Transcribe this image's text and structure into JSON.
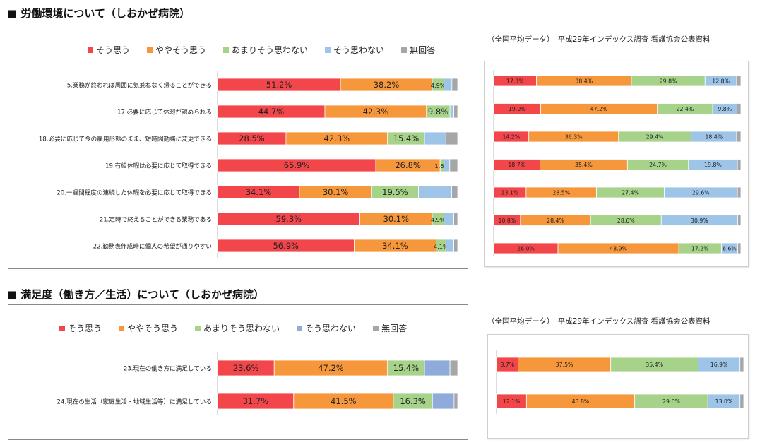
{
  "sections": [
    {
      "title": "■ 労働環境について（しおかぜ病院）"
    },
    {
      "title": "■ 満足度（働き方／生活）について（しおかぜ病院）"
    }
  ],
  "notes": [
    "（全国平均データ）　平成29年インデックス調査  看護協会公表資料",
    "（全国平均データ）　平成29年インデックス調査  看護協会公表資料"
  ],
  "colors": [
    "#f2464b",
    "#f7973c",
    "#a6d28a",
    "#9ec5e8",
    "#a6a6a6"
  ],
  "chart_data": [
    {
      "type": "bar",
      "orientation": "horizontal-stacked-100",
      "legend": [
        "そう思う",
        "ややそう思う",
        "あまりそう思わない",
        "そう思わない",
        "無回答"
      ],
      "categories": [
        "5.業務が終われば周囲に気兼ねなく帰ることができる",
        "17.必要に応じて休暇が認められる",
        "18.必要に応じて今の雇用形態のまま、短時間勤務に変更できる",
        "19.有給休暇は必要に応じて取得できる",
        "20.一週間程度の連続した休暇を必要に応じて取得できる",
        "21.定時で終えることができる業務である",
        "22.勤務表作成時に個人の希望が通りやすい"
      ],
      "values": [
        [
          51.2,
          38.2,
          4.9,
          3.3,
          2.4
        ],
        [
          44.7,
          42.3,
          9.8,
          1.6,
          1.6
        ],
        [
          28.5,
          42.3,
          15.4,
          8.9,
          4.9
        ],
        [
          65.9,
          26.8,
          1.6,
          2.4,
          3.3
        ],
        [
          34.1,
          30.1,
          19.5,
          13.8,
          2.5
        ],
        [
          59.3,
          30.1,
          4.9,
          4.1,
          1.6
        ],
        [
          56.9,
          34.1,
          4.1,
          3.3,
          1.6
        ]
      ],
      "labels": [
        [
          "51.2%",
          "38.2%",
          "4.9%",
          "",
          ""
        ],
        [
          "44.7%",
          "42.3%",
          "9.8%",
          "",
          ""
        ],
        [
          "28.5%",
          "42.3%",
          "15.4%",
          "",
          ""
        ],
        [
          "65.9%",
          "26.8%",
          "1.6%",
          "",
          ""
        ],
        [
          "34.1%",
          "30.1%",
          "19.5%",
          "",
          ""
        ],
        [
          "59.3%",
          "30.1%",
          "4.9%",
          "",
          ""
        ],
        [
          "56.9%",
          "34.1%",
          "4.1%",
          "",
          ""
        ]
      ],
      "xlim": [
        0,
        100
      ]
    },
    {
      "type": "bar",
      "orientation": "horizontal-stacked-100",
      "categories": [
        "",
        "",
        "",
        "",
        "",
        "",
        ""
      ],
      "values": [
        [
          17.3,
          38.4,
          29.8,
          12.8,
          1.7
        ],
        [
          19.0,
          47.2,
          22.4,
          9.8,
          1.6
        ],
        [
          14.2,
          36.3,
          29.4,
          18.4,
          1.7
        ],
        [
          18.7,
          35.4,
          24.7,
          19.8,
          1.4
        ],
        [
          13.1,
          28.5,
          27.4,
          29.6,
          1.4
        ],
        [
          10.8,
          28.4,
          28.6,
          30.9,
          1.3
        ],
        [
          26.0,
          48.9,
          17.2,
          6.6,
          1.3
        ]
      ],
      "labels": [
        [
          "17.3%",
          "38.4%",
          "29.8%",
          "12.8%",
          ""
        ],
        [
          "19.0%",
          "47.2%",
          "22.4%",
          "9.8%",
          ""
        ],
        [
          "14.2%",
          "36.3%",
          "29.4%",
          "18.4%",
          ""
        ],
        [
          "18.7%",
          "35.4%",
          "24.7%",
          "19.8%",
          ""
        ],
        [
          "13.1%",
          "28.5%",
          "27.4%",
          "29.6%",
          ""
        ],
        [
          "10.8%",
          "28.4%",
          "28.6%",
          "30.9%",
          ""
        ],
        [
          "26.0%",
          "48.9%",
          "17.2%",
          "6.6%",
          ""
        ]
      ],
      "xlim": [
        0,
        100
      ]
    },
    {
      "type": "bar",
      "orientation": "horizontal-stacked-100",
      "legend": [
        "そう思う",
        "ややそう思う",
        "あまりそう思わない",
        "そう思わない",
        "無回答"
      ],
      "categories": [
        "23.現在の働き方に満足している",
        "24.現在の生活（家庭生活・地域生活等）に満足している"
      ],
      "values": [
        [
          23.6,
          47.2,
          15.4,
          10.6,
          3.2
        ],
        [
          31.7,
          41.5,
          16.3,
          9.0,
          1.5
        ]
      ],
      "labels": [
        [
          "23.6%",
          "47.2%",
          "15.4%",
          "",
          ""
        ],
        [
          "31.7%",
          "41.5%",
          "16.3%",
          "",
          ""
        ]
      ],
      "xlim": [
        0,
        100
      ]
    },
    {
      "type": "bar",
      "orientation": "horizontal-stacked-100",
      "categories": [
        "",
        ""
      ],
      "values": [
        [
          8.7,
          37.5,
          35.4,
          16.9,
          1.5
        ],
        [
          12.1,
          43.8,
          29.6,
          13.0,
          1.5
        ]
      ],
      "labels": [
        [
          "8.7%",
          "37.5%",
          "35.4%",
          "16.9%",
          ""
        ],
        [
          "12.1%",
          "43.8%",
          "29.6%",
          "13.0%",
          ""
        ]
      ],
      "xlim": [
        0,
        100
      ]
    }
  ]
}
